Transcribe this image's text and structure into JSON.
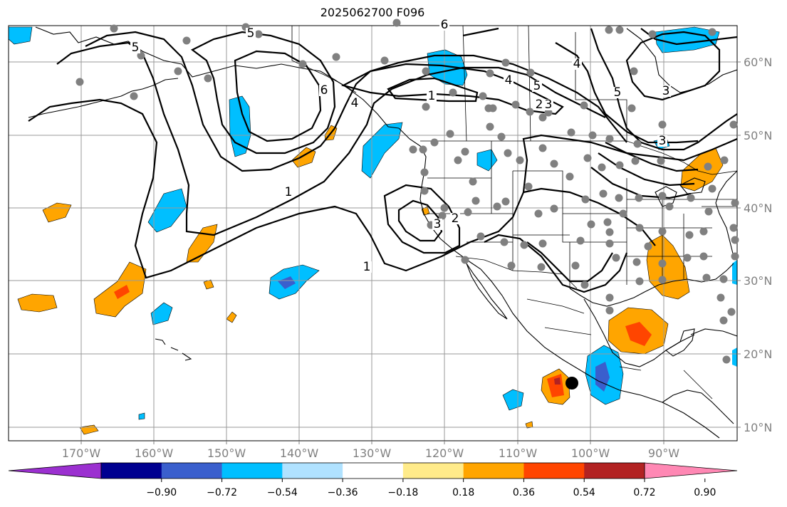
{
  "title": "2025062700 F096",
  "map": {
    "lon_ticks": [
      "170°W",
      "160°W",
      "150°W",
      "140°W",
      "130°W",
      "120°W",
      "110°W",
      "100°W",
      "90°W"
    ],
    "lat_ticks": [
      "10°N",
      "20°N",
      "30°N",
      "40°N",
      "50°N",
      "60°N"
    ]
  },
  "contour_labels": [
    "5",
    "5",
    "6",
    "4",
    "1",
    "1",
    "4",
    "5",
    "5",
    "4",
    "3",
    "3",
    "3",
    "2",
    "6",
    "3",
    "2",
    "1"
  ],
  "colorbar": {
    "ticks": [
      "−0.90",
      "−0.72",
      "−0.54",
      "−0.36",
      "−0.18",
      "0.18",
      "0.36",
      "0.54",
      "0.72",
      "0.90"
    ],
    "colors": [
      "#9b30d0",
      "#000090",
      "#3a5fcd",
      "#00bfff",
      "#b0e2ff",
      "#ffffff",
      "#ffeb8a",
      "#ffa500",
      "#ff4500",
      "#b22222",
      "#ff88b4"
    ]
  },
  "marker": {
    "color": "#000000"
  },
  "stations_color": "#808080"
}
